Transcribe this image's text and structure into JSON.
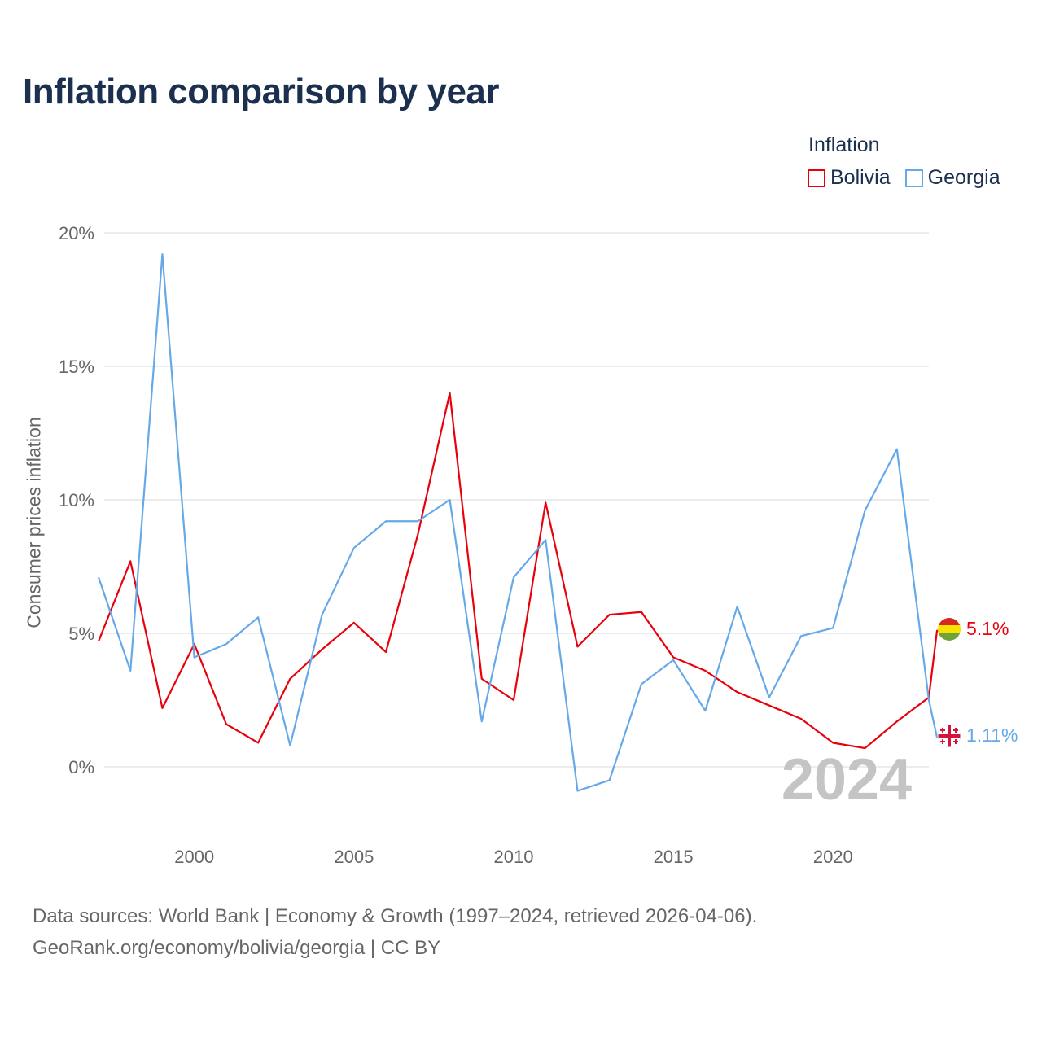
{
  "header": {
    "title": "Inflation comparison by year"
  },
  "legend": {
    "title": "Inflation"
  },
  "footer": {
    "line1": "Data sources: World Bank | Economy & Growth (1997–2024, retrieved 2026-04-06).",
    "line2": "GeoRank.org/economy/bolivia/georgia | CC BY"
  },
  "colors": {
    "bolivia": "#e8000b",
    "georgia": "#65a9e8",
    "grid": "#e6e6e6"
  },
  "chart_data": {
    "type": "line",
    "title": "Inflation comparison by year",
    "xlabel": "",
    "ylabel": "Consumer prices inflation",
    "xlim": [
      1997,
      2024
    ],
    "ylim": [
      -2,
      20
    ],
    "x_ticks": [
      {
        "value": 2000,
        "label": "2000"
      },
      {
        "value": 2005,
        "label": "2005"
      },
      {
        "value": 2010,
        "label": "2010"
      },
      {
        "value": 2015,
        "label": "2015"
      },
      {
        "value": 2020,
        "label": "2020"
      }
    ],
    "y_ticks": [
      {
        "value": 0,
        "label": "0%"
      },
      {
        "value": 5,
        "label": "5%"
      },
      {
        "value": 10,
        "label": "10%"
      },
      {
        "value": 15,
        "label": "15%"
      },
      {
        "value": 20,
        "label": "20%"
      }
    ],
    "x": [
      1997,
      1998,
      1999,
      2000,
      2001,
      2002,
      2003,
      2004,
      2005,
      2006,
      2007,
      2008,
      2009,
      2010,
      2011,
      2012,
      2013,
      2014,
      2015,
      2016,
      2017,
      2018,
      2019,
      2020,
      2021,
      2022,
      2023,
      2024
    ],
    "series": [
      {
        "name": "Bolivia",
        "color": "#e8000b",
        "end_label": "5.1%",
        "values": [
          4.7,
          7.7,
          2.2,
          4.6,
          1.6,
          0.9,
          3.3,
          4.4,
          5.4,
          4.3,
          8.7,
          14.0,
          3.3,
          2.5,
          9.9,
          4.5,
          5.7,
          5.8,
          4.1,
          3.6,
          2.8,
          2.3,
          1.8,
          0.9,
          0.7,
          1.7,
          2.6,
          5.1
        ]
      },
      {
        "name": "Georgia",
        "color": "#65a9e8",
        "end_label": "1.11%",
        "values": [
          7.1,
          3.6,
          19.2,
          4.1,
          4.6,
          5.6,
          0.8,
          5.7,
          8.2,
          9.2,
          9.2,
          10.0,
          1.7,
          7.1,
          8.5,
          -0.9,
          -0.5,
          3.1,
          4.0,
          2.1,
          6.0,
          2.6,
          4.9,
          5.2,
          9.6,
          11.9,
          2.5,
          1.11
        ]
      }
    ],
    "annotations": [
      {
        "text": "2024",
        "placement": "bottom-right"
      }
    ],
    "grid": true,
    "legend_position": "top-right"
  }
}
